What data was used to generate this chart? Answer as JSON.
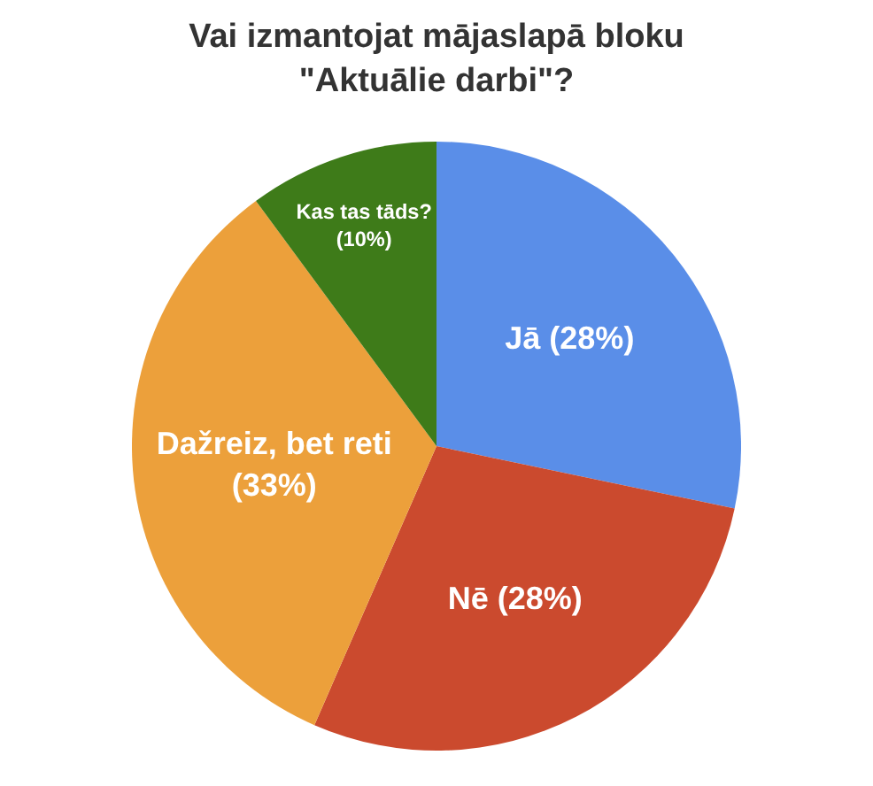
{
  "chart_data": {
    "type": "pie",
    "title": "Vai izmantojat mājaslapā bloku\n\"Aktuālie darbi\"?",
    "categories": [
      "Jā (28%)",
      "Nē (28%)",
      "Dažreiz, bet reti (33%)",
      "Kas tas tāds? (10%)"
    ],
    "values": [
      28,
      28,
      33,
      10
    ],
    "colors": [
      "#5a8ee8",
      "#cb4a2e",
      "#eca03b",
      "#3e7b19"
    ],
    "legend": false
  }
}
